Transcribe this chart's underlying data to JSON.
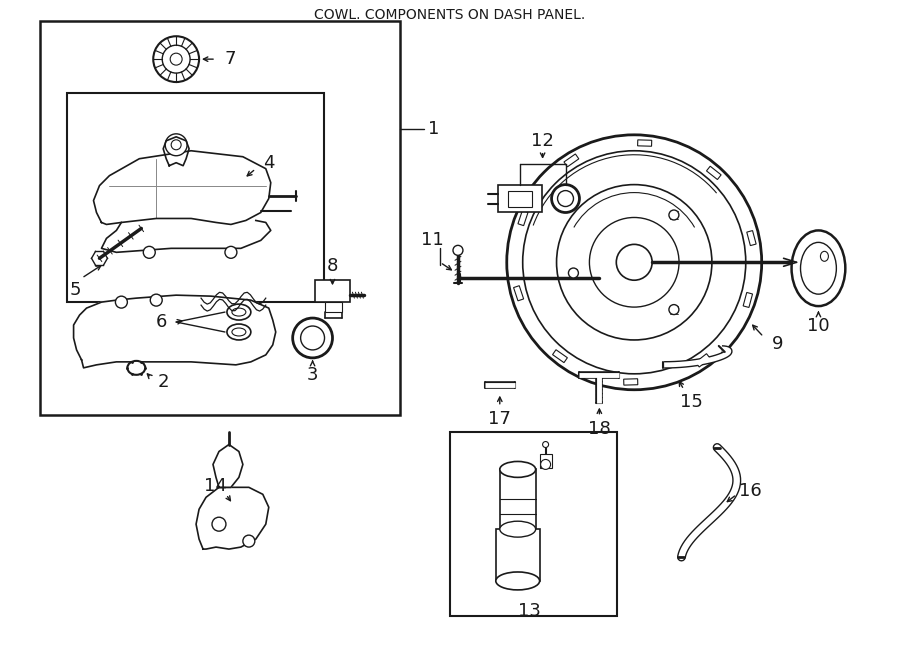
{
  "title": "COWL. COMPONENTS ON DASH PANEL.",
  "bg": "#ffffff",
  "lc": "#1a1a1a",
  "figsize": [
    9.0,
    6.61
  ],
  "dpi": 100
}
